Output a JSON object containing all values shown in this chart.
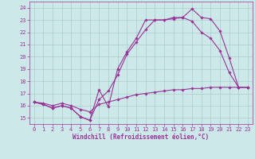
{
  "xlabel": "Windchill (Refroidissement éolien,°C)",
  "bg_color": "#cce8e8",
  "line_color": "#993399",
  "xlim": [
    -0.5,
    23.5
  ],
  "ylim": [
    14.5,
    24.5
  ],
  "xticks": [
    0,
    1,
    2,
    3,
    4,
    5,
    6,
    7,
    8,
    9,
    10,
    11,
    12,
    13,
    14,
    15,
    16,
    17,
    18,
    19,
    20,
    21,
    22,
    23
  ],
  "yticks": [
    15,
    16,
    17,
    18,
    19,
    20,
    21,
    22,
    23,
    24
  ],
  "line1_x": [
    0,
    1,
    2,
    3,
    4,
    5,
    6,
    7,
    8,
    9,
    10,
    11,
    12,
    13,
    14,
    15,
    16,
    17,
    18,
    19,
    20,
    21,
    22,
    23
  ],
  "line1_y": [
    16.3,
    16.1,
    15.8,
    16.0,
    15.8,
    15.1,
    14.8,
    17.3,
    15.9,
    19.0,
    20.4,
    21.5,
    23.0,
    23.0,
    23.0,
    23.1,
    23.2,
    23.9,
    23.2,
    23.1,
    22.1,
    19.9,
    17.5,
    17.5
  ],
  "line2_x": [
    0,
    1,
    2,
    3,
    4,
    5,
    6,
    7,
    8,
    9,
    10,
    11,
    12,
    13,
    14,
    15,
    16,
    17,
    18,
    19,
    20,
    21,
    22,
    23
  ],
  "line2_y": [
    16.3,
    16.1,
    15.8,
    16.0,
    15.8,
    15.1,
    14.8,
    16.5,
    17.2,
    18.5,
    20.2,
    21.2,
    22.2,
    23.0,
    23.0,
    23.2,
    23.2,
    22.9,
    22.0,
    21.5,
    20.5,
    18.7,
    17.5,
    17.5
  ],
  "line3_x": [
    0,
    1,
    2,
    3,
    4,
    5,
    6,
    7,
    8,
    9,
    10,
    11,
    12,
    13,
    14,
    15,
    16,
    17,
    18,
    19,
    20,
    21,
    22,
    23
  ],
  "line3_y": [
    16.3,
    16.2,
    16.0,
    16.2,
    16.0,
    15.7,
    15.5,
    16.1,
    16.3,
    16.5,
    16.7,
    16.9,
    17.0,
    17.1,
    17.2,
    17.3,
    17.3,
    17.4,
    17.4,
    17.5,
    17.5,
    17.5,
    17.5,
    17.5
  ],
  "grid_color": "#aacccc",
  "marker": "D",
  "markersize": 1.8,
  "linewidth": 0.8,
  "tick_fontsize": 5.0,
  "xlabel_fontsize": 5.5
}
